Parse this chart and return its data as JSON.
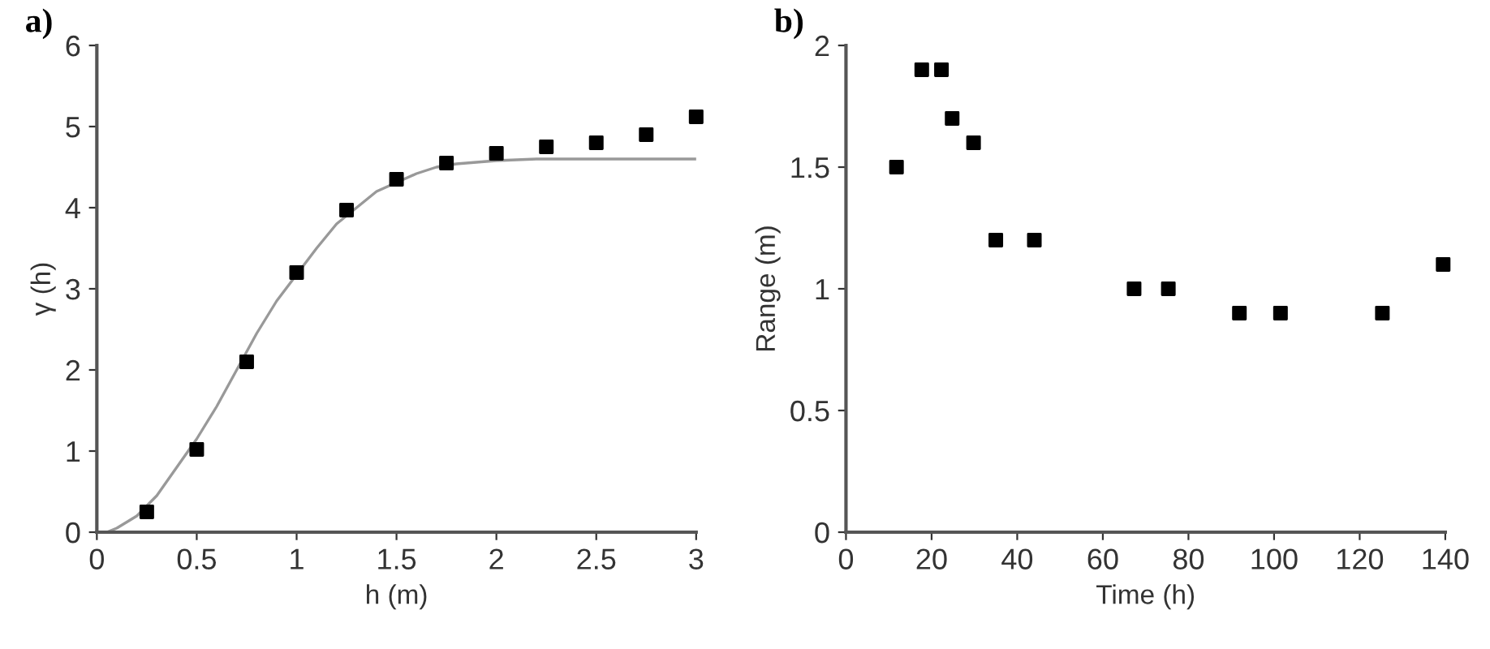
{
  "chart_data": [
    {
      "type": "scatter",
      "title": "a)",
      "xlabel": "h (m)",
      "ylabel": "γ (h)",
      "xlim": [
        0,
        3
      ],
      "ylim": [
        0,
        6
      ],
      "xticks": [
        0,
        0.5,
        1,
        1.5,
        2,
        2.5,
        3
      ],
      "yticks": [
        0,
        1,
        2,
        3,
        4,
        5,
        6
      ],
      "grid": false,
      "legend": false,
      "series": [
        {
          "marker": "square",
          "color": "#000000",
          "x": [
            0.25,
            0.5,
            0.75,
            1.0,
            1.25,
            1.5,
            1.75,
            2.0,
            2.25,
            2.5,
            2.75,
            3.0
          ],
          "values": [
            0.25,
            1.02,
            2.1,
            3.2,
            3.97,
            4.35,
            4.55,
            4.67,
            4.75,
            4.8,
            4.9,
            5.12
          ]
        },
        {
          "type": "line",
          "color": "#999999",
          "x": [
            0.05,
            0.1,
            0.2,
            0.3,
            0.4,
            0.5,
            0.6,
            0.7,
            0.8,
            0.9,
            1.1,
            1.2,
            1.3,
            1.4,
            1.6,
            1.7,
            1.8,
            2.0,
            2.2,
            2.5,
            3.0
          ],
          "values": [
            0,
            0.05,
            0.2,
            0.45,
            0.8,
            1.15,
            1.55,
            2.0,
            2.45,
            2.85,
            3.5,
            3.8,
            4.0,
            4.2,
            4.42,
            4.5,
            4.54,
            4.58,
            4.6,
            4.6,
            4.6
          ]
        }
      ]
    },
    {
      "type": "scatter",
      "title": "b)",
      "xlabel": "Time (h)",
      "ylabel": "Range (m)",
      "xlim": [
        0,
        140
      ],
      "ylim": [
        0,
        2
      ],
      "xticks": [
        0,
        20,
        40,
        60,
        80,
        100,
        120,
        140
      ],
      "yticks": [
        0,
        0.5,
        1,
        1.5,
        2
      ],
      "grid": false,
      "legend": false,
      "series": [
        {
          "marker": "square",
          "color": "#000000",
          "x": [
            11.8,
            17.7,
            22.3,
            24.8,
            29.8,
            35,
            44,
            67.3,
            75.3,
            91.9,
            101.5,
            125.3,
            139.5
          ],
          "values": [
            1.5,
            1.9,
            1.9,
            1.7,
            1.6,
            1.2,
            1.2,
            1.0,
            1.0,
            0.9,
            0.9,
            0.9,
            1.1
          ]
        }
      ]
    }
  ]
}
